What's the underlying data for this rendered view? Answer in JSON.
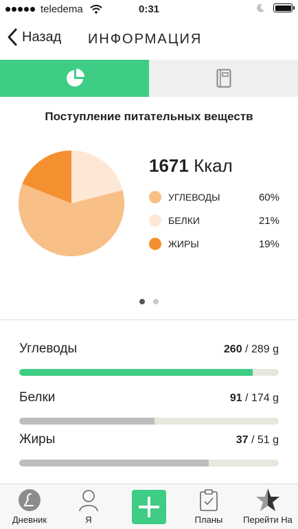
{
  "status_bar": {
    "carrier": "teledema",
    "time": "0:31"
  },
  "nav": {
    "back_label": "Назад",
    "title": "ИНФОРМАЦИЯ"
  },
  "segments": [
    {
      "icon": "pie-chart-icon",
      "active": true
    },
    {
      "icon": "notebook-icon",
      "active": false
    }
  ],
  "summary": {
    "title": "Поступление питательных веществ",
    "kcal_value": "1671",
    "kcal_unit": "Ккал",
    "legend": [
      {
        "label": "УГЛЕВОДЫ",
        "percent": "60%",
        "value": 60,
        "color": "#f8bf86"
      },
      {
        "label": "БЕЛКИ",
        "percent": "21%",
        "value": 21,
        "color": "#fde8d6"
      },
      {
        "label": "ЖИРЫ",
        "percent": "19%",
        "value": 19,
        "color": "#f4902f"
      }
    ]
  },
  "pager": {
    "count": 2,
    "active": 0
  },
  "nutrients": [
    {
      "name": "Углеводы",
      "current": "260",
      "separator": " / ",
      "goal": "289 g",
      "progress": 0.9,
      "color": "#3fcc85"
    },
    {
      "name": "Белки",
      "current": "91",
      "separator": " / ",
      "goal": "174 g",
      "progress": 0.52,
      "color": "#bdbdbd"
    },
    {
      "name": "Жиры",
      "current": "37",
      "separator": " / ",
      "goal": "51 g",
      "progress": 0.73,
      "color": "#bdbdbd"
    }
  ],
  "tabbar": {
    "diary_label": "Дневник",
    "me_label": "Я",
    "plans_label": "Планы",
    "goto_label": "Перейти На"
  },
  "colors": {
    "accent": "#3fcc85",
    "carbs": "#f8bf86",
    "protein": "#fde8d6",
    "fat": "#f4902f"
  }
}
